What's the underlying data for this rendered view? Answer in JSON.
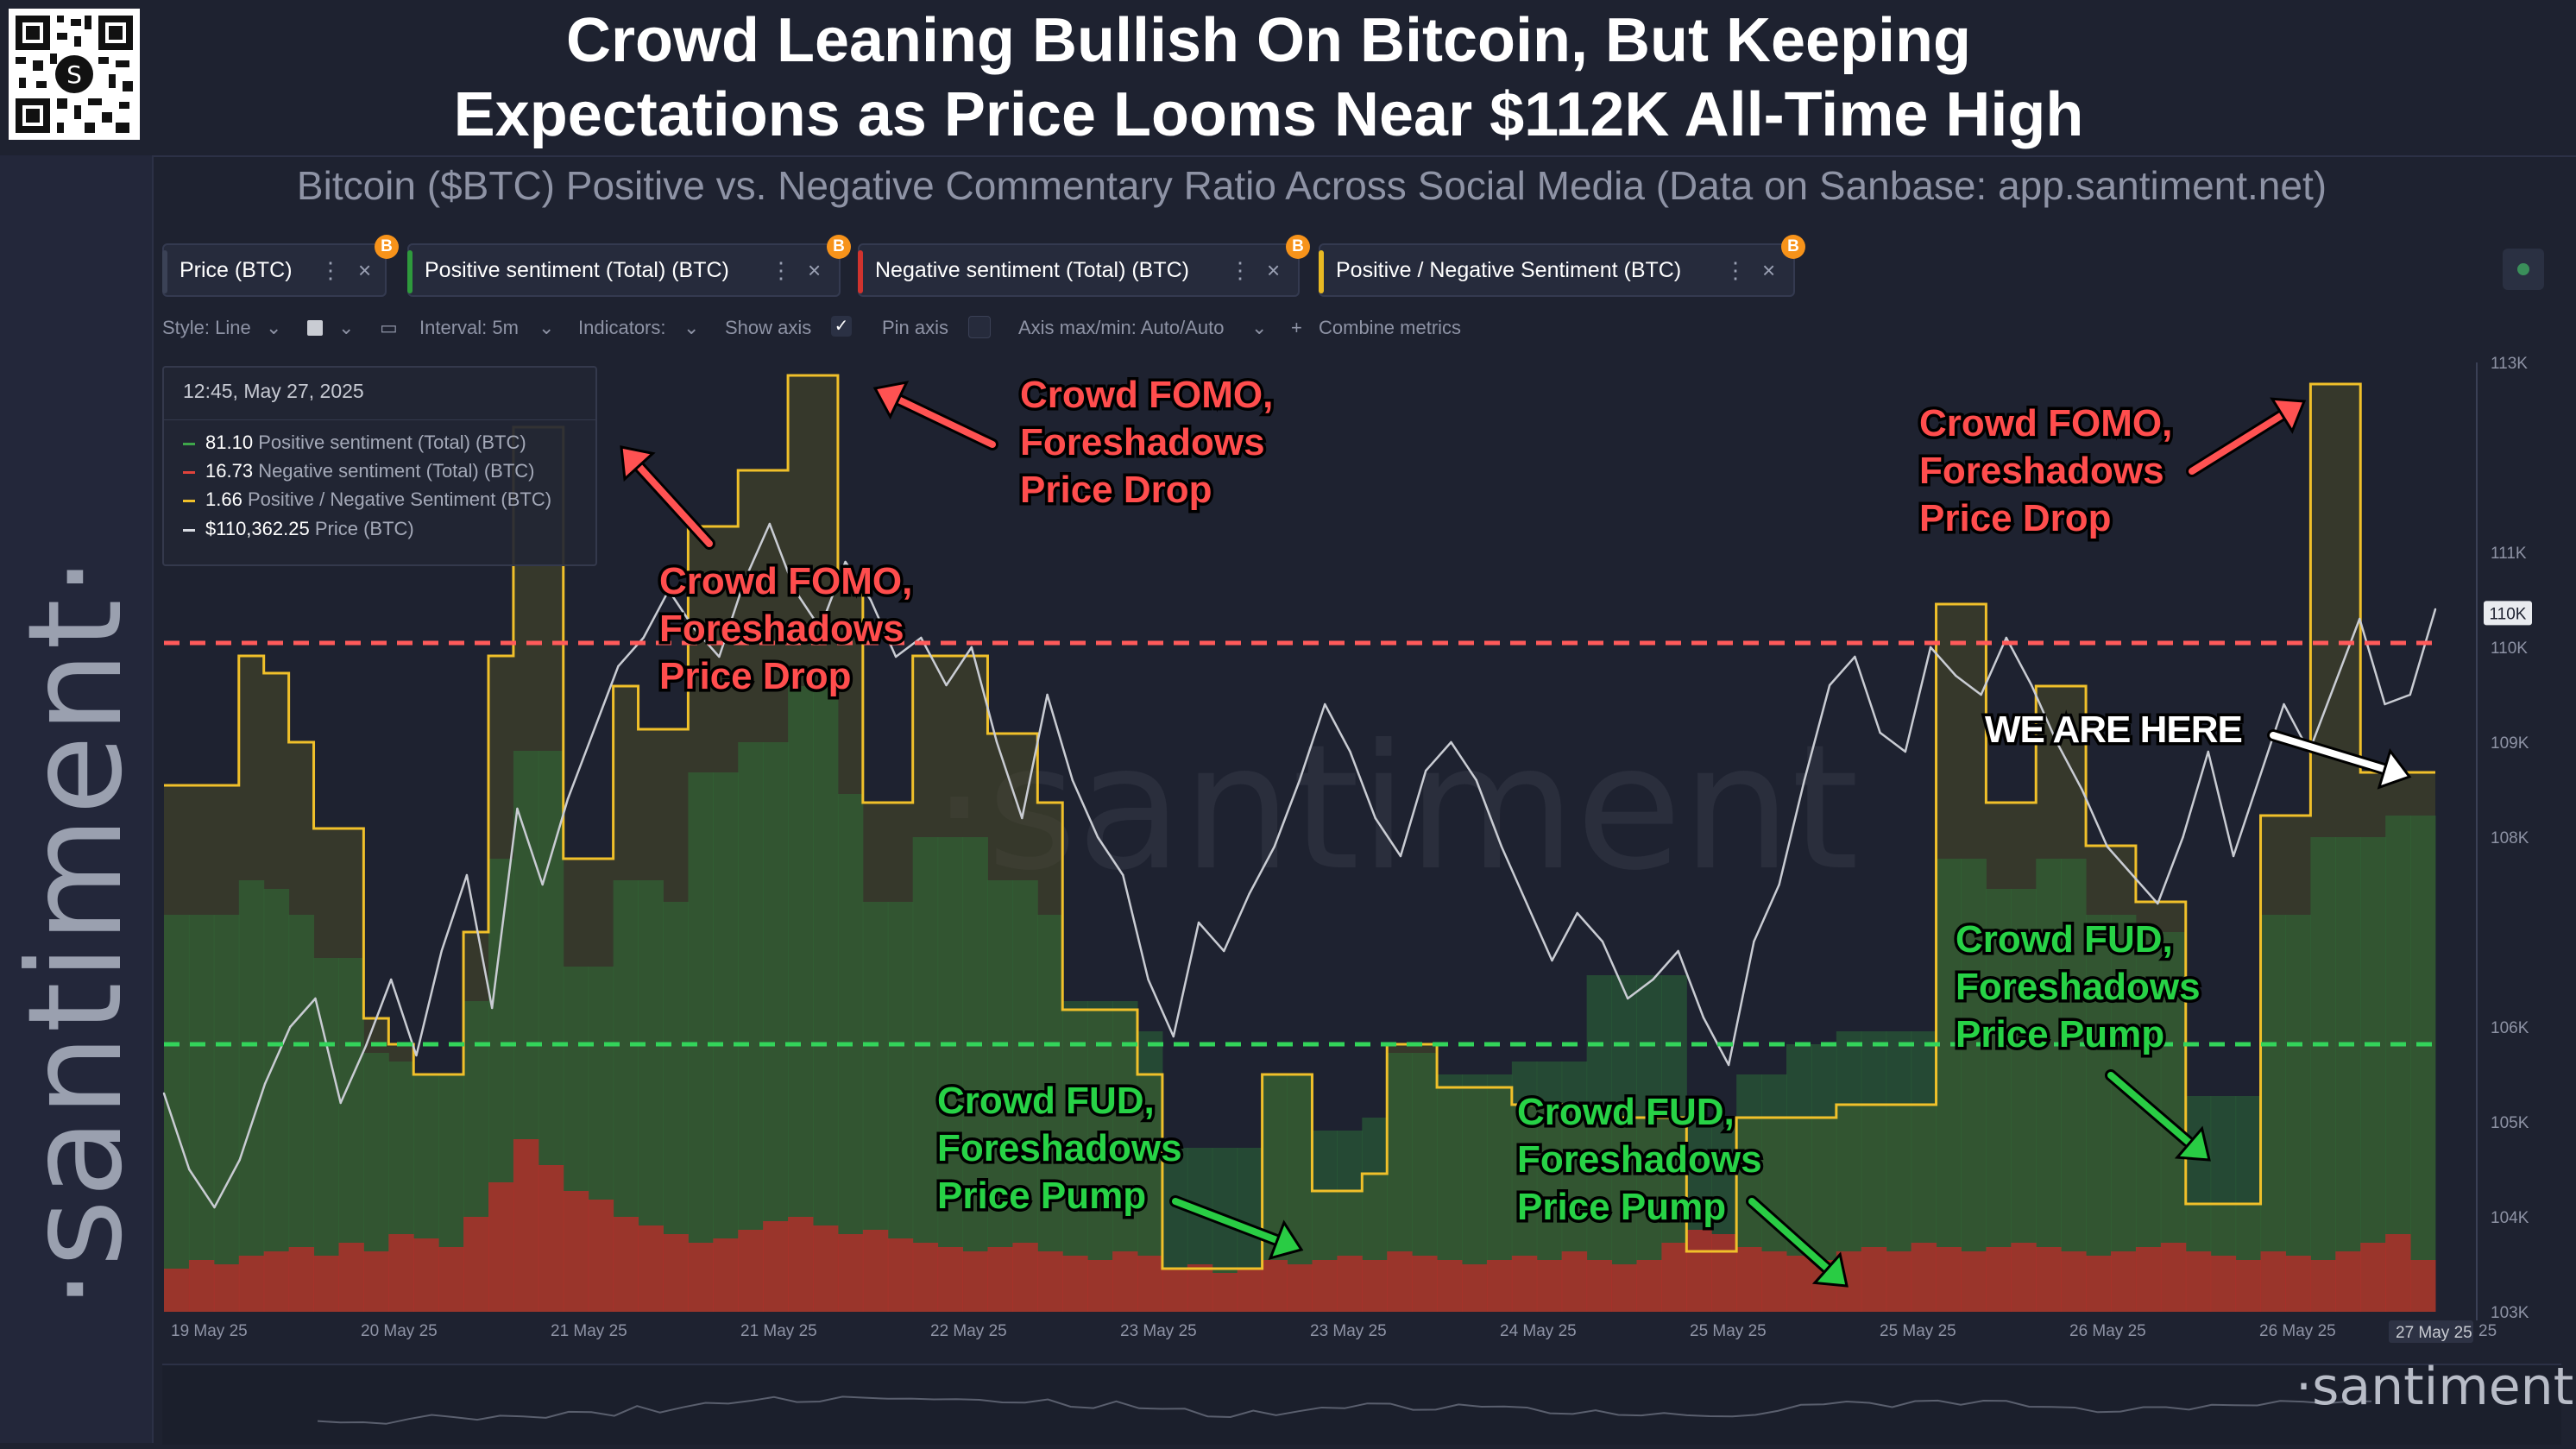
{
  "header": {
    "title_line1": "Crowd Leaning Bullish On Bitcoin, But Keeping",
    "title_line2": "Expectations as Price Looms Near $112K All-Time High",
    "subtitle": "Bitcoin ($BTC) Positive vs. Negative Commentary Ratio Across Social Media (Data on Sanbase: app.santiment.net)"
  },
  "brand": {
    "vertical": "·santiment·",
    "watermark": "·santiment",
    "bottom": "·santiment·"
  },
  "tabs": [
    {
      "label": "Price (BTC)",
      "color": "#3b4256"
    },
    {
      "label": "Positive sentiment (Total) (BTC)",
      "color": "#2e9a3c"
    },
    {
      "label": "Negative sentiment (Total) (BTC)",
      "color": "#d0332e"
    },
    {
      "label": "Positive / Negative Sentiment (BTC)",
      "color": "#e8b923"
    }
  ],
  "tab_icons": {
    "more": "⋮",
    "close": "×",
    "badge": "B"
  },
  "toolbar": {
    "style": "Style: Line",
    "interval": "Interval: 5m",
    "indicators": "Indicators:",
    "show_axis": "Show axis",
    "pin_axis": "Pin axis",
    "axis_minmax": "Axis max/min: Auto/Auto",
    "combine": "Combine metrics"
  },
  "tooltip": {
    "date": "12:45, May 27, 2025",
    "rows": [
      {
        "value": "81.10",
        "label": "Positive sentiment (Total) (BTC)",
        "color": "#3ea64a"
      },
      {
        "value": "16.73",
        "label": "Negative sentiment (Total) (BTC)",
        "color": "#e0433b"
      },
      {
        "value": "1.66",
        "label": "Positive / Negative Sentiment (BTC)",
        "color": "#f0c02a"
      },
      {
        "value": "$110,362.25",
        "label": "Price (BTC)",
        "color": "#d9dce3"
      }
    ]
  },
  "annotations": [
    {
      "text": [
        "Crowd FOMO,",
        "Foreshadows",
        "Price Drop"
      ],
      "kind": "fomo"
    },
    {
      "text": [
        "Crowd FOMO,",
        "Foreshadows",
        "Price Drop"
      ],
      "kind": "fomo"
    },
    {
      "text": [
        "Crowd FOMO,",
        "Foreshadows",
        "Price Drop"
      ],
      "kind": "fomo"
    },
    {
      "text": [
        "Crowd FUD,",
        "Foreshadows",
        "Price Pump"
      ],
      "kind": "fud"
    },
    {
      "text": [
        "Crowd FUD,",
        "Foreshadows",
        "Price Pump"
      ],
      "kind": "fud"
    },
    {
      "text": [
        "Crowd FUD,",
        "Foreshadows",
        "Price Pump"
      ],
      "kind": "fud"
    },
    {
      "text": [
        "WE ARE HERE"
      ],
      "kind": "here"
    }
  ],
  "chart_data": {
    "type": "line",
    "title": "Bitcoin ($BTC) Positive vs. Negative Commentary Ratio Across Social Media",
    "x_ticks": [
      "19 May 25",
      "20 May 25",
      "21 May 25",
      "21 May 25",
      "22 May 25",
      "23 May 25",
      "23 May 25",
      "24 May 25",
      "25 May 25",
      "25 May 25",
      "26 May 25",
      "26 May 25",
      "27 May 25",
      "25"
    ],
    "y_ticks": [
      "113K",
      "111K",
      "110K",
      "109K",
      "108K",
      "106K",
      "105K",
      "104K",
      "103K"
    ],
    "y_tick_values": [
      113,
      111,
      110,
      109,
      108,
      106,
      105,
      104,
      103
    ],
    "current_price_label": "110K",
    "ratio_ylim": [
      0.0,
      2.2
    ],
    "reference_lines": {
      "fomo_ratio": 1.55,
      "fud_ratio": 0.62
    },
    "series": [
      {
        "name": "Positive / Negative Sentiment (BTC)",
        "color": "#f0c02a",
        "values": [
          1.22,
          1.22,
          1.22,
          1.52,
          1.48,
          1.32,
          1.12,
          1.12,
          0.68,
          0.62,
          0.55,
          0.55,
          0.88,
          1.52,
          2.05,
          2.05,
          1.05,
          1.05,
          1.45,
          1.35,
          1.35,
          1.82,
          1.82,
          1.95,
          1.95,
          2.17,
          2.17,
          1.68,
          1.18,
          1.18,
          1.52,
          1.52,
          1.52,
          1.34,
          1.34,
          1.18,
          0.7,
          0.7,
          0.7,
          0.55,
          0.1,
          0.1,
          0.1,
          0.1,
          0.55,
          0.55,
          0.28,
          0.28,
          0.32,
          0.62,
          0.62,
          0.52,
          0.52,
          0.52,
          0.48,
          0.48,
          0.48,
          0.45,
          0.45,
          0.45,
          0.45,
          0.14,
          0.14,
          0.45,
          0.45,
          0.45,
          0.45,
          0.48,
          0.48,
          0.48,
          0.48,
          1.64,
          1.64,
          1.18,
          1.18,
          1.45,
          1.45,
          1.08,
          1.08,
          0.95,
          0.95,
          0.25,
          0.25,
          0.25,
          1.15,
          1.15,
          2.15,
          2.15,
          1.25,
          1.25,
          1.25
        ]
      },
      {
        "name": "Positive sentiment (Total) (BTC)",
        "color": "#3ea64a",
        "values": [
          0.92,
          0.92,
          0.92,
          1.0,
          0.98,
          0.92,
          0.82,
          0.82,
          0.6,
          0.58,
          0.55,
          0.55,
          0.72,
          1.05,
          1.3,
          1.3,
          0.8,
          0.8,
          1.0,
          1.0,
          0.95,
          1.25,
          1.25,
          1.32,
          1.32,
          1.45,
          1.45,
          1.2,
          0.95,
          0.95,
          1.1,
          1.1,
          1.1,
          1.0,
          1.0,
          0.92,
          0.72,
          0.72,
          0.72,
          0.65,
          0.38,
          0.38,
          0.38,
          0.38,
          0.55,
          0.55,
          0.42,
          0.42,
          0.45,
          0.6,
          0.6,
          0.55,
          0.55,
          0.55,
          0.58,
          0.58,
          0.58,
          0.78,
          0.78,
          0.78,
          0.78,
          0.45,
          0.45,
          0.55,
          0.55,
          0.62,
          0.62,
          0.65,
          0.65,
          0.65,
          0.65,
          1.05,
          1.05,
          0.98,
          0.98,
          1.05,
          1.05,
          0.92,
          0.92,
          0.88,
          0.88,
          0.5,
          0.5,
          0.5,
          0.92,
          0.92,
          1.1,
          1.1,
          1.1,
          1.15,
          1.15
        ]
      },
      {
        "name": "Negative sentiment (Total) (BTC)",
        "color": "#e0433b",
        "values": [
          0.1,
          0.12,
          0.11,
          0.13,
          0.14,
          0.15,
          0.13,
          0.16,
          0.14,
          0.18,
          0.17,
          0.15,
          0.22,
          0.3,
          0.4,
          0.34,
          0.28,
          0.26,
          0.22,
          0.2,
          0.18,
          0.16,
          0.17,
          0.19,
          0.21,
          0.22,
          0.2,
          0.18,
          0.19,
          0.17,
          0.16,
          0.15,
          0.14,
          0.15,
          0.16,
          0.14,
          0.13,
          0.12,
          0.14,
          0.13,
          0.1,
          0.11,
          0.09,
          0.1,
          0.12,
          0.11,
          0.12,
          0.13,
          0.12,
          0.14,
          0.13,
          0.12,
          0.11,
          0.12,
          0.13,
          0.12,
          0.14,
          0.12,
          0.11,
          0.12,
          0.16,
          0.19,
          0.18,
          0.15,
          0.14,
          0.13,
          0.12,
          0.14,
          0.15,
          0.14,
          0.16,
          0.15,
          0.14,
          0.15,
          0.16,
          0.15,
          0.14,
          0.13,
          0.14,
          0.15,
          0.16,
          0.14,
          0.13,
          0.12,
          0.14,
          0.13,
          0.12,
          0.14,
          0.16,
          0.18,
          0.12
        ]
      },
      {
        "name": "Price (BTC)",
        "color": "#c9ccd3",
        "values": [
          105.3,
          104.5,
          104.1,
          104.6,
          105.4,
          106.0,
          106.3,
          105.2,
          105.8,
          106.5,
          105.7,
          106.8,
          107.6,
          106.2,
          108.3,
          107.5,
          108.4,
          109.1,
          109.8,
          110.1,
          110.6,
          110.2,
          109.9,
          110.7,
          111.3,
          110.6,
          110.2,
          110.9,
          110.5,
          109.9,
          110.1,
          109.6,
          110.0,
          109.0,
          108.2,
          109.5,
          108.6,
          108.0,
          107.6,
          106.5,
          105.9,
          107.1,
          106.8,
          107.4,
          107.9,
          108.6,
          109.4,
          108.9,
          108.2,
          107.8,
          108.7,
          109.0,
          108.6,
          107.9,
          107.3,
          106.7,
          107.2,
          106.9,
          106.3,
          106.5,
          106.8,
          106.1,
          105.6,
          106.9,
          107.5,
          108.6,
          109.6,
          109.9,
          109.1,
          108.9,
          110.0,
          109.7,
          109.5,
          110.1,
          109.6,
          109.0,
          108.5,
          107.9,
          107.6,
          107.3,
          108.0,
          108.9,
          107.8,
          108.6,
          109.4,
          108.9,
          109.6,
          110.3,
          109.4,
          109.5,
          110.4
        ]
      }
    ]
  }
}
